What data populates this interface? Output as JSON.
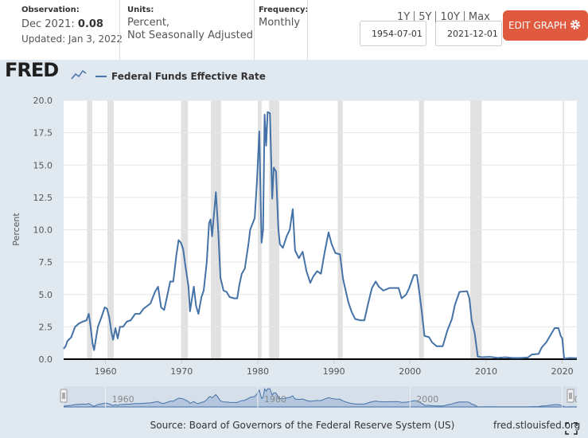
{
  "header": {
    "observation_label": "Observation:",
    "observation_date": "Dec 2021:",
    "observation_value": "0.08",
    "updated": "Updated: Jan 3, 2022",
    "units_label": "Units:",
    "units_line1": "Percent,",
    "units_line2": "Not Seasonally Adjusted",
    "frequency_label": "Frequency:",
    "frequency": "Monthly",
    "ranges": [
      "1Y",
      "5Y",
      "10Y",
      "Max"
    ],
    "start_date": "1954-07-01",
    "end_date": "2021-12-01",
    "edit_button": "EDIT GRAPH"
  },
  "logo": "FRED",
  "footer": {
    "source": "Source: Board of Governors of the Federal Reserve System (US)",
    "site": "fred.stlouisfed.org"
  },
  "chart_data": {
    "type": "line",
    "ylabel": "Percent",
    "x": [
      1954.5,
      1954.75,
      1955.0,
      1955.5,
      1956.0,
      1956.5,
      1957.0,
      1957.5,
      1957.8,
      1958.0,
      1958.3,
      1958.5,
      1958.8,
      1959.0,
      1959.5,
      1959.9,
      1960.2,
      1960.5,
      1960.8,
      1961.0,
      1961.3,
      1961.6,
      1961.9,
      1962.3,
      1962.8,
      1963.3,
      1963.9,
      1964.5,
      1965.0,
      1965.9,
      1966.5,
      1966.9,
      1967.3,
      1967.7,
      1968.0,
      1968.5,
      1968.9,
      1969.3,
      1969.6,
      1969.9,
      1970.2,
      1970.5,
      1970.9,
      1971.1,
      1971.6,
      1971.9,
      1972.2,
      1972.6,
      1972.9,
      1973.3,
      1973.6,
      1973.8,
      1974.0,
      1974.5,
      1974.8,
      1975.1,
      1975.5,
      1975.9,
      1976.3,
      1976.9,
      1977.3,
      1977.6,
      1977.9,
      1978.3,
      1978.8,
      1979.0,
      1979.6,
      1979.9,
      1980.2,
      1980.5,
      1980.7,
      1980.9,
      1981.1,
      1981.3,
      1981.6,
      1981.9,
      1982.1,
      1982.4,
      1982.7,
      1982.9,
      1983.3,
      1983.8,
      1984.2,
      1984.6,
      1984.9,
      1985.4,
      1985.9,
      1986.4,
      1986.9,
      1987.3,
      1987.8,
      1988.3,
      1988.8,
      1989.3,
      1989.7,
      1990.2,
      1990.8,
      1991.2,
      1991.9,
      1992.3,
      1992.8,
      1993.5,
      1994.0,
      1994.5,
      1995.0,
      1995.5,
      1995.9,
      1996.5,
      1997.3,
      1997.9,
      1998.5,
      1998.9,
      1999.5,
      1999.9,
      2000.5,
      2000.9,
      2001.2,
      2001.5,
      2001.9,
      2002.5,
      2002.9,
      2003.5,
      2004.3,
      2004.9,
      2005.5,
      2005.9,
      2006.5,
      2007.5,
      2007.8,
      2008.1,
      2008.5,
      2008.9,
      2009.5,
      2010.5,
      2011.5,
      2012.5,
      2013.5,
      2014.5,
      2015.5,
      2016.0,
      2016.9,
      2017.3,
      2017.9,
      2018.5,
      2019.0,
      2019.5,
      2019.8,
      2020.0,
      2020.25,
      2021.0,
      2021.92
    ],
    "series": [
      {
        "name": "Federal Funds Effective Rate",
        "color": "#4572a7",
        "values": [
          0.8,
          1.0,
          1.4,
          1.7,
          2.5,
          2.75,
          2.9,
          3.0,
          3.5,
          2.7,
          1.2,
          0.7,
          1.8,
          2.5,
          3.3,
          4.0,
          3.9,
          3.2,
          2.0,
          1.5,
          2.4,
          1.6,
          2.5,
          2.5,
          2.9,
          3.0,
          3.5,
          3.5,
          3.9,
          4.3,
          5.2,
          5.6,
          4.0,
          3.8,
          4.6,
          6.0,
          6.0,
          8.0,
          9.2,
          9.0,
          8.5,
          7.2,
          5.6,
          3.7,
          5.6,
          4.1,
          3.5,
          4.8,
          5.3,
          7.5,
          10.5,
          10.8,
          9.5,
          12.9,
          10.0,
          6.3,
          5.3,
          5.2,
          4.8,
          4.7,
          4.7,
          5.8,
          6.6,
          7.0,
          9.0,
          10.0,
          10.9,
          13.8,
          17.6,
          9.0,
          10.0,
          18.9,
          16.5,
          19.1,
          19.0,
          12.4,
          14.8,
          14.5,
          10.1,
          8.9,
          8.6,
          9.5,
          10.0,
          11.6,
          8.4,
          7.8,
          8.3,
          6.8,
          5.9,
          6.4,
          6.8,
          6.6,
          8.3,
          9.8,
          8.9,
          8.2,
          8.1,
          6.2,
          4.4,
          3.7,
          3.1,
          3.0,
          3.0,
          4.3,
          5.5,
          6.0,
          5.6,
          5.3,
          5.5,
          5.5,
          5.5,
          4.7,
          5.0,
          5.5,
          6.5,
          6.5,
          5.3,
          3.9,
          1.8,
          1.7,
          1.3,
          1.0,
          1.0,
          2.2,
          3.1,
          4.2,
          5.2,
          5.25,
          4.7,
          3.0,
          2.0,
          0.2,
          0.15,
          0.18,
          0.1,
          0.15,
          0.09,
          0.09,
          0.13,
          0.36,
          0.41,
          0.9,
          1.3,
          1.9,
          2.4,
          2.4,
          1.8,
          1.6,
          0.05,
          0.09,
          0.08
        ]
      }
    ],
    "recessions": [
      [
        1957.58,
        1958.25
      ],
      [
        1960.25,
        1961.08
      ],
      [
        1969.92,
        1970.83
      ],
      [
        1973.83,
        1975.17
      ],
      [
        1980.0,
        1980.5
      ],
      [
        1981.5,
        1982.83
      ],
      [
        1990.5,
        1991.17
      ],
      [
        2001.17,
        2001.83
      ],
      [
        2007.92,
        2009.42
      ],
      [
        2020.08,
        2020.25
      ]
    ],
    "xlim": [
      1954.5,
      2021.92
    ],
    "ylim": [
      0,
      20
    ],
    "xticks": [
      1960,
      1970,
      1980,
      1990,
      2000,
      2010,
      2020
    ],
    "yticks": [
      {
        "value": 0,
        "label": "0.0"
      },
      2.5,
      {
        "value": 5,
        "label": "5.0"
      },
      7.5,
      {
        "value": 10,
        "label": "10.0"
      },
      12.5,
      {
        "value": 15,
        "label": "15.0"
      },
      17.5,
      {
        "value": 20,
        "label": "20.0"
      }
    ],
    "navigator_xticks": [
      1960,
      1980,
      2000,
      2020
    ]
  }
}
